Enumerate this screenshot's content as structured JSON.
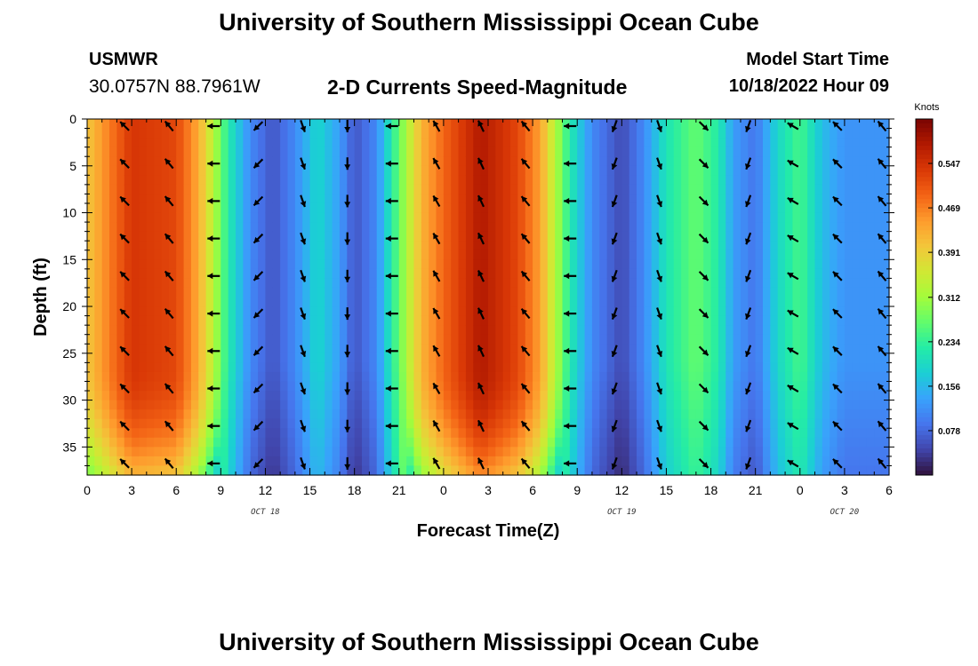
{
  "header": {
    "title": "University of Southern Mississippi Ocean Cube",
    "station": "USMWR",
    "coordinates": "30.0757N  88.7961W",
    "subtitle": "2-D Currents Speed-Magnitude",
    "start_label": "Model Start Time",
    "start_time": "10/18/2022 Hour 09"
  },
  "footer": {
    "title": "University of Southern Mississippi Ocean Cube"
  },
  "chart_data": {
    "type": "heatmap",
    "title": "2-D Currents Speed-Magnitude",
    "xlabel": "Forecast Time(Z)",
    "ylabel": "Depth (ft)",
    "x_tick_labels": [
      "0",
      "3",
      "6",
      "9",
      "12",
      "15",
      "18",
      "21",
      "0",
      "3",
      "6",
      "9",
      "12",
      "15",
      "18",
      "21",
      "0",
      "3",
      "6"
    ],
    "x_range_hours": [
      0,
      54
    ],
    "date_labels": [
      {
        "text": "OCT 18",
        "hour": 12
      },
      {
        "text": "OCT 19",
        "hour": 36
      },
      {
        "text": "OCT 20",
        "hour": 51
      }
    ],
    "y_ticks": [
      0,
      5,
      10,
      15,
      20,
      25,
      30,
      35
    ],
    "y_range_ft": [
      0,
      38
    ],
    "colorbar": {
      "title": "Knots",
      "ticks": [
        "0.547",
        "0.469",
        "0.391",
        "0.312",
        "0.234",
        "0.156",
        "0.078"
      ],
      "range": [
        0,
        0.625
      ]
    },
    "speed_profile_by_hour": [
      {
        "hour": 0,
        "speed": 0.4
      },
      {
        "hour": 1.5,
        "speed": 0.47
      },
      {
        "hour": 3,
        "speed": 0.54
      },
      {
        "hour": 6,
        "speed": 0.52
      },
      {
        "hour": 7.5,
        "speed": 0.43
      },
      {
        "hour": 8.5,
        "speed": 0.33
      },
      {
        "hour": 9.5,
        "speed": 0.22
      },
      {
        "hour": 11,
        "speed": 0.11
      },
      {
        "hour": 12.5,
        "speed": 0.06
      },
      {
        "hour": 14,
        "speed": 0.11
      },
      {
        "hour": 15.5,
        "speed": 0.19
      },
      {
        "hour": 17,
        "speed": 0.13
      },
      {
        "hour": 18,
        "speed": 0.06
      },
      {
        "hour": 19.5,
        "speed": 0.11
      },
      {
        "hour": 20.5,
        "speed": 0.22
      },
      {
        "hour": 21.5,
        "speed": 0.32
      },
      {
        "hour": 22.5,
        "speed": 0.42
      },
      {
        "hour": 24,
        "speed": 0.49
      },
      {
        "hour": 26.5,
        "speed": 0.58
      },
      {
        "hour": 29,
        "speed": 0.52
      },
      {
        "hour": 30.5,
        "speed": 0.44
      },
      {
        "hour": 31.5,
        "speed": 0.33
      },
      {
        "hour": 32.5,
        "speed": 0.22
      },
      {
        "hour": 34,
        "speed": 0.11
      },
      {
        "hour": 36,
        "speed": 0.05
      },
      {
        "hour": 37.5,
        "speed": 0.11
      },
      {
        "hour": 39,
        "speed": 0.21
      },
      {
        "hour": 41,
        "speed": 0.27
      },
      {
        "hour": 42.5,
        "speed": 0.22
      },
      {
        "hour": 43.5,
        "speed": 0.13
      },
      {
        "hour": 45,
        "speed": 0.09
      },
      {
        "hour": 46.5,
        "speed": 0.19
      },
      {
        "hour": 48,
        "speed": 0.25
      },
      {
        "hour": 49.5,
        "speed": 0.16
      },
      {
        "hour": 51,
        "speed": 0.12
      },
      {
        "hour": 54,
        "speed": 0.12
      }
    ],
    "arrow_hours": [
      3,
      6,
      9,
      12,
      15,
      18,
      21,
      24,
      27,
      30,
      33,
      36,
      39,
      42,
      45,
      48,
      51,
      54
    ],
    "arrow_depths_ft": [
      0,
      4,
      8,
      12,
      16,
      20,
      24,
      28,
      32,
      36
    ],
    "arrow_direction_deg_by_hour": [
      315,
      320,
      270,
      225,
      160,
      180,
      270,
      330,
      335,
      320,
      270,
      200,
      160,
      135,
      200,
      300,
      315,
      320
    ],
    "color_scale": [
      "#30123b",
      "#4145ab",
      "#4675ed",
      "#39a2fc",
      "#1bcfd4",
      "#24eca6",
      "#61fc6c",
      "#a4fc3b",
      "#d1e834",
      "#f3c63a",
      "#fe9b2d",
      "#f36315",
      "#d93806",
      "#b11901",
      "#7a0402"
    ]
  }
}
